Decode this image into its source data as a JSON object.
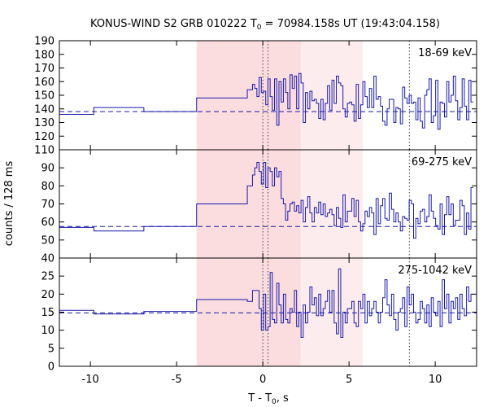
{
  "chart_data": {
    "type": "line",
    "title": "KONUS-WIND S2 GRB 010222 T",
    "title_subscript": "0",
    "title_rest": " = 70984.158s UT (19:43:04.158)",
    "xlabel": "T - T",
    "xlabel_subscript": "0",
    "xlabel_rest": ", s",
    "ylabel": "counts / 128 ms",
    "xlim": [
      -11.8,
      12.4
    ],
    "x_ticks": [
      -10,
      -5,
      0,
      5,
      10
    ],
    "x_tick_labels": [
      "-10",
      "-5",
      "0",
      "5",
      "10"
    ],
    "shaded_regions": [
      {
        "x0": -3.84,
        "x1": 2.2,
        "color": "#fbdcdf"
      },
      {
        "x0": 2.2,
        "x1": 5.8,
        "color": "#fdeced"
      }
    ],
    "vertical_markers": [
      0,
      0.3,
      8.5
    ],
    "series_color": "#1a1aaa",
    "panels": [
      {
        "band_label": "18-69 keV",
        "ylim": [
          110,
          190
        ],
        "y_ticks": [
          110,
          120,
          130,
          140,
          150,
          160,
          170,
          180,
          190
        ],
        "y_tick_labels": [
          "110",
          "120",
          "130",
          "140",
          "150",
          "160",
          "170",
          "180",
          "190"
        ],
        "background_level": 138,
        "coarse_steps": [
          {
            "x0": -11.8,
            "x1": -9.8,
            "y": 136
          },
          {
            "x0": -9.8,
            "x1": -6.9,
            "y": 141
          },
          {
            "x0": -6.9,
            "x1": -3.84,
            "y": 138
          },
          {
            "x0": -3.84,
            "x1": -0.9,
            "y": 148
          },
          {
            "x0": -0.9,
            "x1": -0.6,
            "y": 154
          }
        ],
        "fine_start": -0.6,
        "bin_width": 0.128,
        "fine_values": [
          158,
          155,
          149,
          163,
          152,
          153,
          143,
          162,
          149,
          139,
          162,
          128,
          160,
          145,
          162,
          152,
          140,
          165,
          155,
          164,
          140,
          166,
          159,
          130,
          152,
          140,
          153,
          146,
          147,
          144,
          133,
          147,
          132,
          144,
          157,
          139,
          161,
          144,
          164,
          159,
          157,
          140,
          134,
          144,
          145,
          143,
          131,
          158,
          133,
          143,
          160,
          149,
          141,
          155,
          141,
          164,
          147,
          149,
          142,
          131,
          128,
          140,
          147,
          147,
          130,
          141,
          140,
          129,
          156,
          148,
          144,
          150,
          144,
          145,
          132,
          148,
          131,
          126,
          150,
          154,
          162,
          130,
          135,
          161,
          125,
          145,
          144,
          134,
          160,
          145,
          150,
          164,
          146,
          132,
          141,
          162,
          142,
          132,
          161,
          145
        ]
      },
      {
        "band_label": "69-275 keV",
        "ylim": [
          40,
          100
        ],
        "y_ticks": [
          40,
          50,
          60,
          70,
          80,
          90
        ],
        "y_tick_labels": [
          "40",
          "50",
          "60",
          "70",
          "80",
          "90"
        ],
        "background_level": 57.5,
        "coarse_steps": [
          {
            "x0": -11.8,
            "x1": -9.8,
            "y": 57
          },
          {
            "x0": -9.8,
            "x1": -6.9,
            "y": 55
          },
          {
            "x0": -6.9,
            "x1": -3.84,
            "y": 57.5
          },
          {
            "x0": -3.84,
            "x1": -0.9,
            "y": 70
          },
          {
            "x0": -0.9,
            "x1": -0.6,
            "y": 80
          }
        ],
        "fine_start": -0.6,
        "bin_width": 0.128,
        "fine_values": [
          86,
          90,
          93,
          88,
          81,
          93,
          79,
          90,
          88,
          80,
          90,
          85,
          88,
          73,
          70,
          61,
          66,
          70,
          71,
          66,
          69,
          65,
          72,
          60,
          68,
          74,
          65,
          60,
          68,
          65,
          71,
          64,
          70,
          63,
          65,
          67,
          64,
          58,
          68,
          62,
          57,
          75,
          60,
          66,
          66,
          73,
          63,
          72,
          60,
          55,
          59,
          66,
          63,
          68,
          65,
          53,
          73,
          59,
          69,
          73,
          62,
          61,
          76,
          67,
          60,
          65,
          60,
          55,
          63,
          62,
          61,
          72,
          70,
          51,
          62,
          59,
          66,
          67,
          60,
          63,
          75,
          66,
          62,
          58,
          56,
          70,
          53,
          64,
          74,
          64,
          70,
          58,
          61,
          61,
          72,
          69,
          53,
          65,
          56,
          79
        ]
      },
      {
        "band_label": "275-1042 keV",
        "ylim": [
          0,
          30
        ],
        "y_ticks": [
          0,
          5,
          10,
          15,
          20,
          25
        ],
        "y_tick_labels": [
          "0",
          "5",
          "10",
          "15",
          "20",
          "25"
        ],
        "background_level": 14.8,
        "coarse_steps": [
          {
            "x0": -11.8,
            "x1": -9.8,
            "y": 15.5
          },
          {
            "x0": -9.8,
            "x1": -6.9,
            "y": 14.5
          },
          {
            "x0": -6.9,
            "x1": -3.84,
            "y": 15.2
          },
          {
            "x0": -3.84,
            "x1": -0.9,
            "y": 18.5
          },
          {
            "x0": -0.9,
            "x1": -0.6,
            "y": 18
          }
        ],
        "fine_start": -0.6,
        "bin_width": 0.128,
        "fine_values": [
          21,
          21,
          21,
          16,
          10,
          20,
          10,
          11,
          26,
          13,
          12,
          23,
          17,
          12,
          20,
          13,
          12,
          16,
          15,
          21,
          11,
          15,
          8,
          17,
          12,
          15,
          22,
          17,
          19,
          14,
          20,
          14,
          16,
          18,
          21,
          15,
          21,
          12,
          9,
          27,
          8,
          15,
          12,
          16,
          16,
          18,
          12,
          11,
          18,
          16,
          20,
          12,
          18,
          14,
          16,
          18,
          15,
          12,
          15,
          19,
          24,
          17,
          14,
          20,
          13,
          10,
          15,
          16,
          19,
          11,
          22,
          17,
          20,
          15,
          12,
          13,
          18,
          16,
          12,
          17,
          11,
          19,
          15,
          14,
          18,
          11,
          24,
          16,
          20,
          12,
          18,
          16,
          19,
          13,
          20,
          16,
          14,
          22,
          18,
          20
        ]
      }
    ]
  }
}
